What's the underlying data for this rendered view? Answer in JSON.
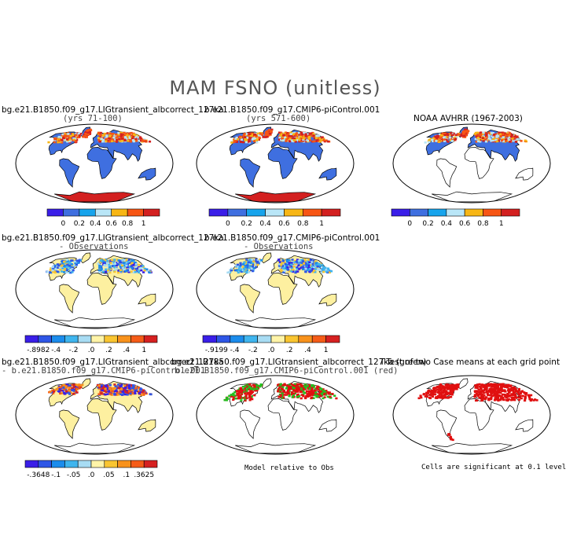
{
  "figure": {
    "title": "MAM FSNO (unitless)"
  },
  "colors": {
    "seq": [
      "#3a1ee8",
      "#3f6fe0",
      "#17a4ec",
      "#b9e6f7",
      "#f7b615",
      "#f75514",
      "#d32020"
    ],
    "div": [
      "#3a1ee8",
      "#2e56e6",
      "#1b8cec",
      "#3fb5ee",
      "#a8dcf3",
      "#fff4a8",
      "#f9c531",
      "#f8921c",
      "#f55c18",
      "#d62121"
    ],
    "land_bg": "#fdf0a0",
    "base_land": "#3f6fe0",
    "antarctica": "#d32020",
    "sig": "#e01010",
    "model_green": "#22c020",
    "model_red": "#e01010"
  },
  "chart_data": [
    {
      "type": "heatmap",
      "panel": "row1-col1",
      "title": "bg.e21.B1850.f09_g17.LIGtransient_albcorrect_127ka",
      "subtitle": "(yrs 71-100)",
      "colorbar_labels": [
        "0",
        "0.2",
        "0.4",
        "0.6",
        "0.8",
        "1"
      ],
      "colorbar_bins": 7
    },
    {
      "type": "heatmap",
      "panel": "row1-col2",
      "title": "b.e21.B1850.f09_g17.CMIP6-piControl.001",
      "subtitle": "(yrs 571-600)",
      "colorbar_labels": [
        "0",
        "0.2",
        "0.4",
        "0.6",
        "0.8",
        "1"
      ],
      "colorbar_bins": 7
    },
    {
      "type": "heatmap",
      "panel": "row1-col3",
      "title": "NOAA AVHRR (1967-2003)",
      "colorbar_labels": [
        "0",
        "0.2",
        "0.4",
        "0.6",
        "0.8",
        "1"
      ],
      "colorbar_bins": 7
    },
    {
      "type": "heatmap",
      "panel": "row2-col1",
      "title": "bg.e21.B1850.f09_g17.LIGtransient_albcorrect_127ka",
      "subtitle": "- Observations",
      "colorbar_labels": [
        "-.8982",
        "-.4",
        "-.2",
        ".0",
        ".2",
        ".4",
        "1"
      ],
      "colorbar_bins": 10
    },
    {
      "type": "heatmap",
      "panel": "row2-col2",
      "title": "b.e21.B1850.f09_g17.CMIP6-piControl.001",
      "subtitle": "- Observations",
      "colorbar_labels": [
        "-.9199",
        "-.4",
        "-.2",
        ".0",
        ".2",
        ".4",
        "1"
      ],
      "colorbar_bins": 10
    },
    {
      "type": "heatmap",
      "panel": "row3-col1",
      "title": "bg.e21.B1850.f09_g17.LIGtransient_albcorrect_127ka",
      "subtitle": "- b.e21.B1850.f09_g17.CMIP6-piControl.001",
      "colorbar_labels": [
        "-.3648",
        "-.1",
        "-.05",
        ".0",
        ".05",
        ".1",
        ".3625"
      ],
      "colorbar_bins": 10
    },
    {
      "type": "heatmap",
      "panel": "row3-col2",
      "title": "bg.e21.B1850.f09_g17.LIGtransient_albcorrect_127ka (green)",
      "subtitle": "b.e21.B1850.f09_g17.CMIP6-piControl.001 (red)",
      "note": "Model relative to Obs"
    },
    {
      "type": "heatmap",
      "panel": "row3-col3",
      "title": "T-Test of two Case means at each grid point",
      "note": "Cells are significant at 0.1 level"
    }
  ]
}
